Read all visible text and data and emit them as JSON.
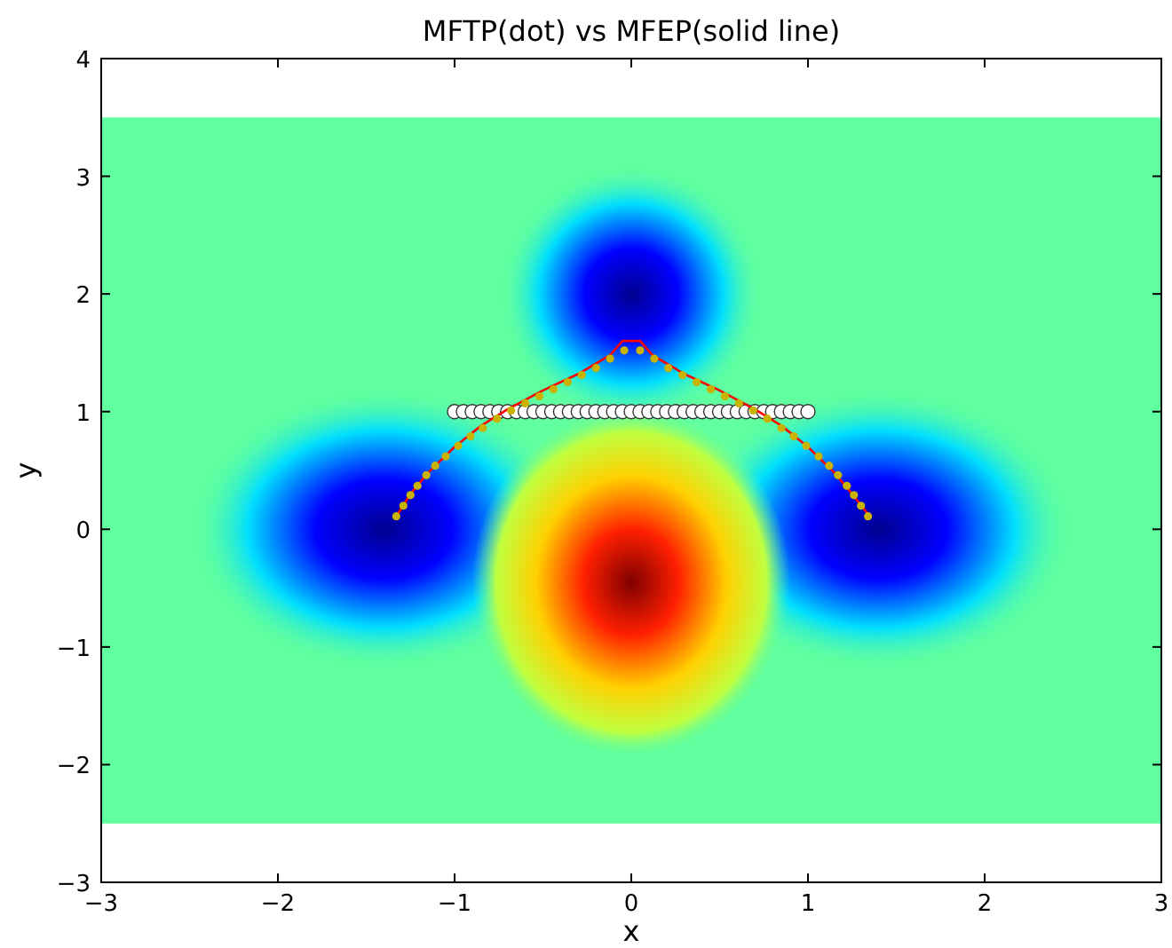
{
  "chart_data": {
    "type": "line",
    "title": "MFTP(dot) vs MFEP(solid line)",
    "xlabel": "x",
    "ylabel": "y",
    "xlim": [
      -3,
      3
    ],
    "ylim": [
      -3,
      4
    ],
    "xticks": [
      -3,
      -2,
      -1,
      0,
      1,
      2,
      3
    ],
    "yticks": [
      -3,
      -2,
      -1,
      0,
      1,
      2,
      3,
      4
    ],
    "grid": false,
    "bands": [
      {
        "axis": "y",
        "from": -2.5,
        "to": 3.5,
        "color": "#60ff9f"
      }
    ],
    "series": [
      {
        "type": "scatter",
        "color": "#ffffff",
        "marker": "circle",
        "x": [
          -1,
          -0.95,
          -0.9,
          -0.85,
          -0.8,
          -0.75,
          -0.7,
          -0.65,
          -0.6,
          -0.55,
          -0.5,
          -0.45,
          -0.4,
          -0.35,
          -0.3,
          -0.25,
          -0.2,
          -0.15,
          -0.1,
          -0.05,
          0,
          0.05,
          0.1,
          0.15,
          0.2,
          0.25,
          0.3,
          0.35,
          0.4,
          0.45,
          0.5,
          0.55,
          0.6,
          0.65,
          0.7,
          0.75,
          0.8,
          0.85,
          0.9,
          0.95,
          1
        ],
        "values": [
          1,
          1,
          1,
          1,
          1,
          1,
          1,
          1,
          1,
          1,
          1,
          1,
          1,
          1,
          1,
          1,
          1,
          1,
          1,
          1,
          1,
          1,
          1,
          1,
          1,
          1,
          1,
          1,
          1,
          1,
          1,
          1,
          1,
          1,
          1,
          1,
          1,
          1,
          1,
          1,
          1
        ]
      },
      {
        "type": "line",
        "color": "#ff0000",
        "marker": "none",
        "line_style": "solid",
        "x": [
          -1.33,
          -1.25,
          -1.15,
          -1.0,
          -0.85,
          -0.7,
          -0.5,
          -0.3,
          -0.12,
          -0.05,
          0.05,
          0.12,
          0.3,
          0.5,
          0.7,
          0.85,
          1.0,
          1.15,
          1.25,
          1.35
        ],
        "values": [
          0.11,
          0.3,
          0.48,
          0.7,
          0.88,
          1.02,
          1.18,
          1.32,
          1.48,
          1.6,
          1.6,
          1.48,
          1.32,
          1.18,
          1.02,
          0.88,
          0.7,
          0.48,
          0.3,
          0.11
        ]
      },
      {
        "type": "scatter",
        "color": "#c8b400",
        "marker": "circle",
        "x": [
          -1.33,
          -1.29,
          -1.25,
          -1.21,
          -1.16,
          -1.11,
          -1.05,
          -0.98,
          -0.91,
          -0.84,
          -0.76,
          -0.68,
          -0.6,
          -0.52,
          -0.44,
          -0.36,
          -0.28,
          -0.2,
          -0.12,
          -0.04,
          0.05,
          0.13,
          0.21,
          0.29,
          0.37,
          0.45,
          0.53,
          0.61,
          0.69,
          0.77,
          0.85,
          0.92,
          0.99,
          1.06,
          1.12,
          1.17,
          1.22,
          1.26,
          1.3,
          1.34
        ],
        "values": [
          0.11,
          0.2,
          0.29,
          0.37,
          0.46,
          0.54,
          0.62,
          0.71,
          0.79,
          0.86,
          0.94,
          1.01,
          1.07,
          1.13,
          1.19,
          1.25,
          1.31,
          1.37,
          1.45,
          1.52,
          1.52,
          1.45,
          1.37,
          1.31,
          1.25,
          1.19,
          1.13,
          1.07,
          1.01,
          0.94,
          0.86,
          0.79,
          0.71,
          0.62,
          0.54,
          0.46,
          0.37,
          0.29,
          0.2,
          0.11
        ]
      }
    ]
  }
}
